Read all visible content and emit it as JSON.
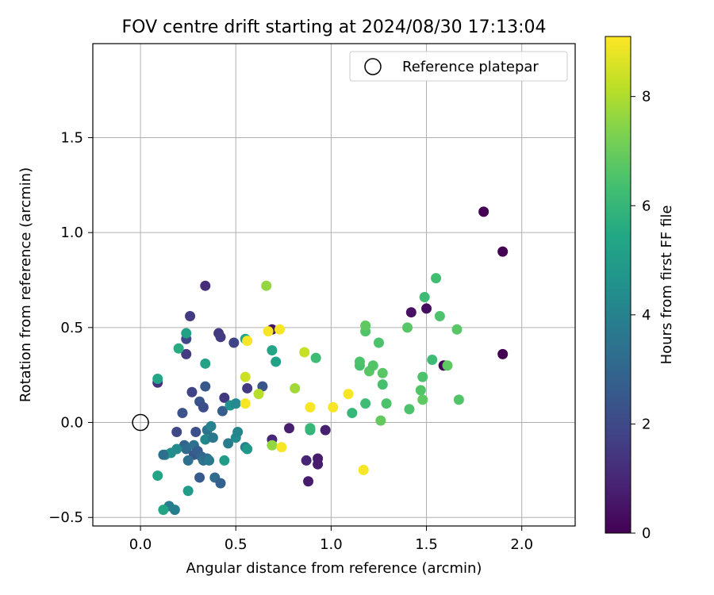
{
  "chart_data": {
    "type": "scatter",
    "title": "FOV centre drift starting at 2024/08/30 17:13:04",
    "xlabel": "Angular distance from reference (arcmin)",
    "ylabel": "Rotation from reference (arcmin)",
    "xlim": [
      -0.25,
      2.28
    ],
    "ylim": [
      -0.545,
      1.995
    ],
    "xticks": [
      "0.0",
      "0.5",
      "1.0",
      "1.5",
      "2.0"
    ],
    "xtick_values": [
      0.0,
      0.5,
      1.0,
      1.5,
      2.0
    ],
    "yticks": [
      "−0.5",
      "0.0",
      "0.5",
      "1.0",
      "1.5"
    ],
    "ytick_values": [
      -0.5,
      0.0,
      0.5,
      1.0,
      1.5
    ],
    "grid": true,
    "legend": {
      "position": "top-right",
      "entries": [
        {
          "label": "Reference platepar",
          "marker": "open-circle"
        }
      ]
    },
    "reference_point": {
      "x": 0.0,
      "y": 0.0
    },
    "colorbar": {
      "label": "Hours from first FF file",
      "colormap": "viridis",
      "range": [
        0,
        9.1
      ],
      "ticks": [
        "0",
        "2",
        "4",
        "6",
        "8"
      ],
      "tick_values": [
        0,
        2,
        4,
        6,
        8
      ]
    },
    "points": [
      {
        "x": 1.8,
        "y": 1.11,
        "c": 0.0
      },
      {
        "x": 1.9,
        "y": 0.9,
        "c": 0.0
      },
      {
        "x": 1.9,
        "y": 0.36,
        "c": 0.0
      },
      {
        "x": 1.59,
        "y": 0.3,
        "c": 0.1
      },
      {
        "x": 1.5,
        "y": 0.6,
        "c": 0.3
      },
      {
        "x": 1.42,
        "y": 0.58,
        "c": 0.4
      },
      {
        "x": 0.88,
        "y": -0.31,
        "c": 0.7
      },
      {
        "x": 0.93,
        "y": -0.19,
        "c": 0.7
      },
      {
        "x": 0.93,
        "y": -0.22,
        "c": 0.7
      },
      {
        "x": 0.87,
        "y": -0.2,
        "c": 0.9
      },
      {
        "x": 0.97,
        "y": -0.04,
        "c": 0.8
      },
      {
        "x": 0.78,
        "y": -0.03,
        "c": 0.8
      },
      {
        "x": 0.69,
        "y": 0.49,
        "c": 0.5
      },
      {
        "x": 0.69,
        "y": -0.09,
        "c": 1.0
      },
      {
        "x": 0.34,
        "y": 0.72,
        "c": 1.2
      },
      {
        "x": 0.09,
        "y": 0.21,
        "c": 1.3
      },
      {
        "x": 0.26,
        "y": 0.56,
        "c": 1.6
      },
      {
        "x": 0.41,
        "y": 0.47,
        "c": 1.5
      },
      {
        "x": 0.42,
        "y": 0.45,
        "c": 1.6
      },
      {
        "x": 0.49,
        "y": 0.42,
        "c": 1.8
      },
      {
        "x": 0.24,
        "y": 0.44,
        "c": 2.0
      },
      {
        "x": 0.24,
        "y": 0.36,
        "c": 1.6
      },
      {
        "x": 0.56,
        "y": 0.18,
        "c": 1.5
      },
      {
        "x": 0.44,
        "y": 0.13,
        "c": 1.5
      },
      {
        "x": 0.27,
        "y": 0.16,
        "c": 1.8
      },
      {
        "x": 0.34,
        "y": 0.19,
        "c": 2.5
      },
      {
        "x": 0.31,
        "y": 0.11,
        "c": 2.4
      },
      {
        "x": 0.33,
        "y": 0.08,
        "c": 2.2
      },
      {
        "x": 0.22,
        "y": 0.05,
        "c": 2.3
      },
      {
        "x": 0.43,
        "y": 0.06,
        "c": 2.7
      },
      {
        "x": 0.64,
        "y": 0.19,
        "c": 2.4
      },
      {
        "x": 0.19,
        "y": -0.05,
        "c": 2.0
      },
      {
        "x": 0.29,
        "y": -0.05,
        "c": 2.2
      },
      {
        "x": 0.35,
        "y": -0.04,
        "c": 3.5
      },
      {
        "x": 0.37,
        "y": -0.02,
        "c": 4.0
      },
      {
        "x": 0.34,
        "y": -0.09,
        "c": 4.2
      },
      {
        "x": 0.38,
        "y": -0.08,
        "c": 3.6
      },
      {
        "x": 0.23,
        "y": -0.12,
        "c": 2.9
      },
      {
        "x": 0.24,
        "y": -0.14,
        "c": 3.2
      },
      {
        "x": 0.28,
        "y": -0.12,
        "c": 3.4
      },
      {
        "x": 0.28,
        "y": -0.17,
        "c": 2.5
      },
      {
        "x": 0.3,
        "y": -0.15,
        "c": 2.7
      },
      {
        "x": 0.32,
        "y": -0.18,
        "c": 3.0
      },
      {
        "x": 0.33,
        "y": -0.2,
        "c": 3.5
      },
      {
        "x": 0.35,
        "y": -0.19,
        "c": 3.2
      },
      {
        "x": 0.36,
        "y": -0.2,
        "c": 3.7
      },
      {
        "x": 0.25,
        "y": -0.2,
        "c": 3.4
      },
      {
        "x": 0.19,
        "y": -0.14,
        "c": 4.3
      },
      {
        "x": 0.16,
        "y": -0.16,
        "c": 4.4
      },
      {
        "x": 0.13,
        "y": -0.17,
        "c": 4.6
      },
      {
        "x": 0.12,
        "y": -0.17,
        "c": 3.3
      },
      {
        "x": 0.31,
        "y": -0.29,
        "c": 2.6
      },
      {
        "x": 0.39,
        "y": -0.29,
        "c": 3.2
      },
      {
        "x": 0.42,
        "y": -0.32,
        "c": 2.8
      },
      {
        "x": 0.25,
        "y": -0.36,
        "c": 5.0
      },
      {
        "x": 0.09,
        "y": -0.28,
        "c": 5.3
      },
      {
        "x": 0.15,
        "y": -0.44,
        "c": 3.8
      },
      {
        "x": 0.18,
        "y": -0.46,
        "c": 3.9
      },
      {
        "x": 0.12,
        "y": -0.46,
        "c": 5.3
      },
      {
        "x": 0.46,
        "y": -0.11,
        "c": 3.8
      },
      {
        "x": 0.5,
        "y": -0.08,
        "c": 4.3
      },
      {
        "x": 0.51,
        "y": -0.05,
        "c": 4.1
      },
      {
        "x": 0.55,
        "y": -0.13,
        "c": 4.0
      },
      {
        "x": 0.56,
        "y": -0.14,
        "c": 4.8
      },
      {
        "x": 0.44,
        "y": -0.2,
        "c": 5.0
      },
      {
        "x": 0.47,
        "y": 0.09,
        "c": 4.6
      },
      {
        "x": 0.5,
        "y": 0.1,
        "c": 4.3
      },
      {
        "x": 0.34,
        "y": 0.31,
        "c": 5.2
      },
      {
        "x": 0.24,
        "y": 0.47,
        "c": 5.2
      },
      {
        "x": 0.2,
        "y": 0.39,
        "c": 5.6
      },
      {
        "x": 0.55,
        "y": 0.44,
        "c": 5.3
      },
      {
        "x": 0.69,
        "y": 0.38,
        "c": 5.3
      },
      {
        "x": 0.71,
        "y": 0.32,
        "c": 5.2
      },
      {
        "x": 0.09,
        "y": 0.23,
        "c": 5.4
      },
      {
        "x": 0.92,
        "y": 0.34,
        "c": 6.2
      },
      {
        "x": 0.89,
        "y": -0.04,
        "c": 5.8
      },
      {
        "x": 0.89,
        "y": -0.03,
        "c": 6.0
      },
      {
        "x": 1.11,
        "y": 0.05,
        "c": 6.0
      },
      {
        "x": 1.18,
        "y": 0.1,
        "c": 6.2
      },
      {
        "x": 1.15,
        "y": 0.3,
        "c": 6.4
      },
      {
        "x": 1.15,
        "y": 0.32,
        "c": 6.5
      },
      {
        "x": 1.18,
        "y": 0.48,
        "c": 6.6
      },
      {
        "x": 1.18,
        "y": 0.51,
        "c": 6.8
      },
      {
        "x": 1.2,
        "y": 0.27,
        "c": 6.7
      },
      {
        "x": 1.22,
        "y": 0.3,
        "c": 6.6
      },
      {
        "x": 1.25,
        "y": 0.42,
        "c": 6.5
      },
      {
        "x": 1.26,
        "y": 0.01,
        "c": 6.9
      },
      {
        "x": 1.27,
        "y": 0.2,
        "c": 6.4
      },
      {
        "x": 1.27,
        "y": 0.26,
        "c": 6.7
      },
      {
        "x": 1.29,
        "y": 0.1,
        "c": 6.5
      },
      {
        "x": 1.4,
        "y": 0.5,
        "c": 6.7
      },
      {
        "x": 1.41,
        "y": 0.07,
        "c": 6.5
      },
      {
        "x": 1.47,
        "y": 0.17,
        "c": 6.6
      },
      {
        "x": 1.48,
        "y": 0.12,
        "c": 6.8
      },
      {
        "x": 1.48,
        "y": 0.24,
        "c": 6.5
      },
      {
        "x": 1.49,
        "y": 0.66,
        "c": 6.2
      },
      {
        "x": 1.53,
        "y": 0.33,
        "c": 6.2
      },
      {
        "x": 1.55,
        "y": 0.76,
        "c": 6.3
      },
      {
        "x": 1.57,
        "y": 0.56,
        "c": 6.5
      },
      {
        "x": 1.61,
        "y": 0.3,
        "c": 6.8
      },
      {
        "x": 1.66,
        "y": 0.49,
        "c": 6.7
      },
      {
        "x": 1.67,
        "y": 0.12,
        "c": 6.6
      },
      {
        "x": 0.66,
        "y": 0.72,
        "c": 7.6
      },
      {
        "x": 0.62,
        "y": 0.15,
        "c": 8.1
      },
      {
        "x": 0.69,
        "y": -0.12,
        "c": 7.6
      },
      {
        "x": 0.81,
        "y": 0.18,
        "c": 7.8
      },
      {
        "x": 0.86,
        "y": 0.37,
        "c": 8.3
      },
      {
        "x": 0.55,
        "y": 0.24,
        "c": 8.4
      },
      {
        "x": 0.67,
        "y": 0.48,
        "c": 9.0
      },
      {
        "x": 0.73,
        "y": 0.49,
        "c": 9.0
      },
      {
        "x": 0.56,
        "y": 0.43,
        "c": 9.0
      },
      {
        "x": 0.55,
        "y": 0.1,
        "c": 9.0
      },
      {
        "x": 0.74,
        "y": -0.13,
        "c": 9.0
      },
      {
        "x": 0.89,
        "y": 0.08,
        "c": 9.0
      },
      {
        "x": 1.01,
        "y": 0.08,
        "c": 9.0
      },
      {
        "x": 1.09,
        "y": 0.15,
        "c": 9.0
      },
      {
        "x": 1.17,
        "y": -0.25,
        "c": 9.0
      }
    ]
  }
}
